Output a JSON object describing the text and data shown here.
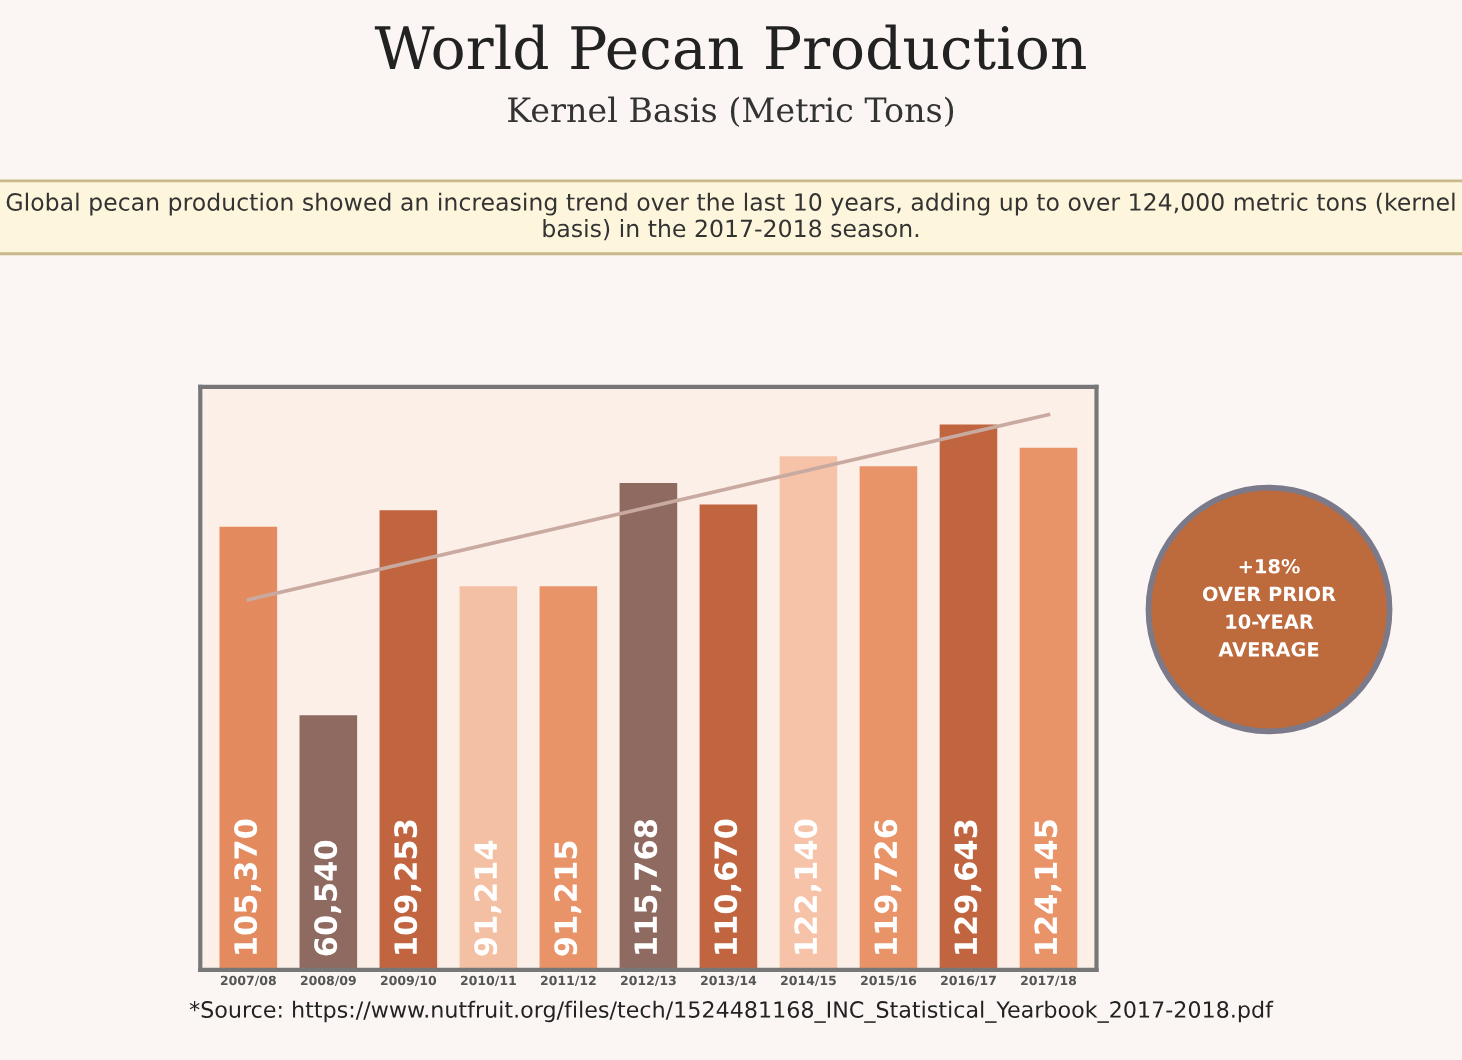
{
  "chart_data": {
    "type": "bar",
    "title": "World Pecan Production",
    "subtitle": "Kernel Basis (Metric Tons)",
    "categories": [
      "2007/08",
      "2008/09",
      "2009/10",
      "2010/11",
      "2011/12",
      "2012/13",
      "2013/14",
      "2014/15",
      "2015/16",
      "2016/17",
      "2017/18"
    ],
    "series": [
      {
        "value_labels": [
          "105,370",
          "60,540",
          "109,253",
          "91,214",
          "91,215",
          "115,768",
          "110,670",
          "122,140",
          "119,726",
          "129,643",
          "124,145"
        ],
        "colors": [
          "#e38b5e",
          "#8f6a60",
          "#c0653f",
          "#f4c0a4",
          "#e89368",
          "#8f6a60",
          "#c0653f",
          "#f6c3a8",
          "#e89368",
          "#c0653f",
          "#e89368"
        ],
        "values": [
          105370,
          60540,
          109253,
          91214,
          91215,
          115768,
          110670,
          122140,
          119726,
          129643,
          124145
        ]
      },
      {
        "type": "line",
        "color": "#c9aaa0",
        "x": [
          "2007/08",
          "2017/18"
        ],
        "values": [
          88000,
          132000
        ]
      }
    ],
    "legend": false,
    "grid": false,
    "annotations": [
      "Global pecan production showed an increasing trend over the last 10 years, adding up to over 124,000 metric tons (kernel basis) in the 2017-2018 season.",
      "+18%\nOVER PRIOR\n10-YEAR\nAVERAGE",
      "*Source: https://www.nutfruit.org/files/tech/1524481168_INC_Statistical_Yearbook_2017-2018.pdf"
    ]
  }
}
